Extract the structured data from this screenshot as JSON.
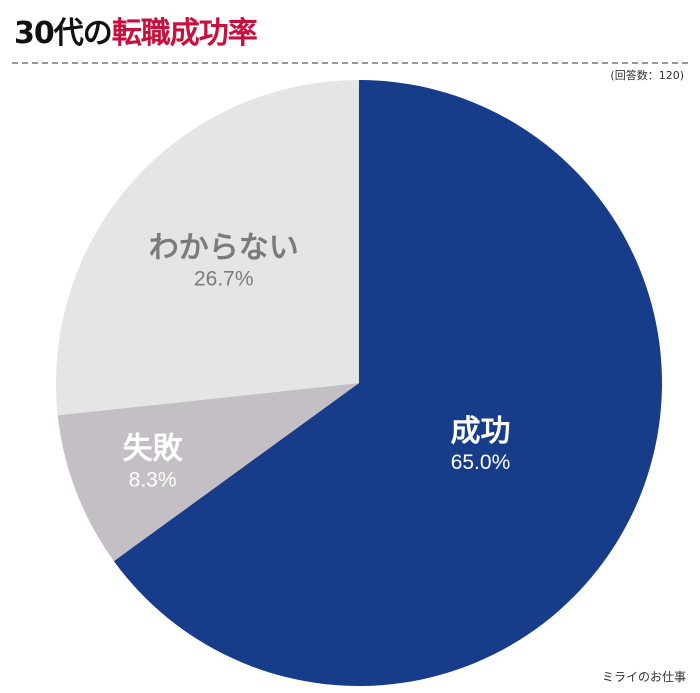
{
  "title": {
    "prefix": "30代の",
    "accent": "転職成功率"
  },
  "note": "(回答数：120)",
  "credit": "ミライのお仕事",
  "colors": {
    "title_prefix": "#111111",
    "title_accent": "#c8103e",
    "rule": "#9a9a9a"
  },
  "chart_data": {
    "type": "pie",
    "slices": [
      {
        "name": "成功",
        "value": 65.0,
        "label": "65.0%",
        "color": "#163c8a",
        "text_color": "#ffffff"
      },
      {
        "name": "失敗",
        "value": 8.3,
        "label": "8.3%",
        "color": "#c4bfc4",
        "text_color": "#ffffff"
      },
      {
        "name": "わからない",
        "value": 26.7,
        "label": "26.7%",
        "color": "#e5e5e5",
        "text_color": "#7b7b7b"
      }
    ],
    "start": "12 o'clock",
    "direction": "clockwise",
    "legend": "none"
  }
}
